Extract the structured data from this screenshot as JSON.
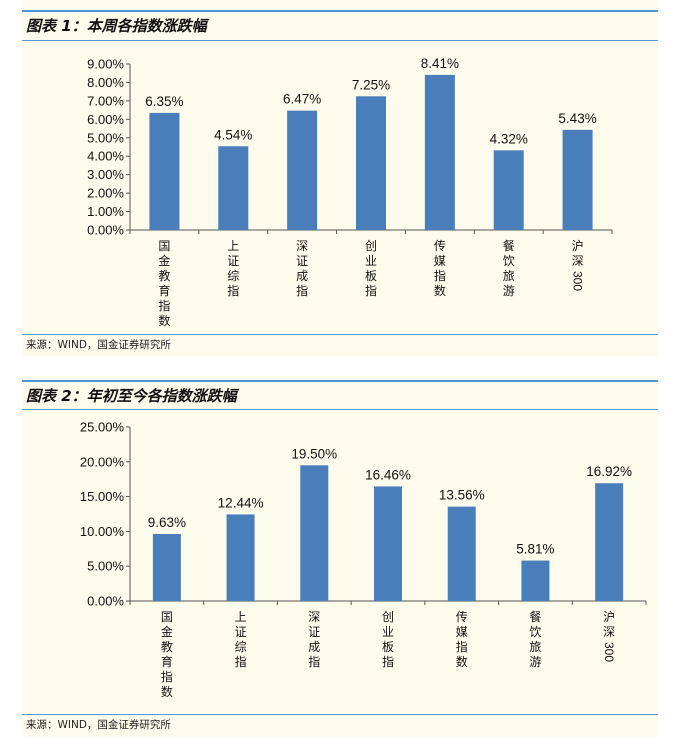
{
  "figures": [
    {
      "title": "图表 1：本周各指数涨跌幅",
      "source": "来源：WIND，国金证券研究所"
    },
    {
      "title": "图表 2：年初至今各指数涨跌幅",
      "source": "来源：WIND，国金证券研究所"
    }
  ],
  "colors": {
    "bar": "#4a7ebb",
    "rule": "#4f93d9",
    "panel_bg": "#fdfbec"
  },
  "chart_data": [
    {
      "type": "bar",
      "title": "",
      "categories": [
        "国金教育指数",
        "上证综指",
        "深证成指",
        "创业板指",
        "传媒指数",
        "餐饮旅游",
        "沪深300"
      ],
      "values": [
        6.35,
        4.54,
        6.47,
        7.25,
        8.41,
        4.32,
        5.43
      ],
      "value_labels": [
        "6.35%",
        "4.54%",
        "6.47%",
        "7.25%",
        "8.41%",
        "4.32%",
        "5.43%"
      ],
      "yticks": [
        "0.00%",
        "1.00%",
        "2.00%",
        "3.00%",
        "4.00%",
        "5.00%",
        "6.00%",
        "7.00%",
        "8.00%",
        "9.00%"
      ],
      "ylim": [
        0,
        9
      ],
      "ystep": 1,
      "grid": false,
      "legend": "none"
    },
    {
      "type": "bar",
      "title": "",
      "categories": [
        "国金教育指数",
        "上证综指",
        "深证成指",
        "创业板指",
        "传媒指数",
        "餐饮旅游",
        "沪深300"
      ],
      "values": [
        9.63,
        12.44,
        19.5,
        16.46,
        13.56,
        5.81,
        16.92
      ],
      "value_labels": [
        "9.63%",
        "12.44%",
        "19.50%",
        "16.46%",
        "13.56%",
        "5.81%",
        "16.92%"
      ],
      "yticks": [
        "0.00%",
        "5.00%",
        "10.00%",
        "15.00%",
        "20.00%",
        "25.00%"
      ],
      "ylim": [
        0,
        25
      ],
      "ystep": 5,
      "grid": false,
      "legend": "none"
    }
  ]
}
